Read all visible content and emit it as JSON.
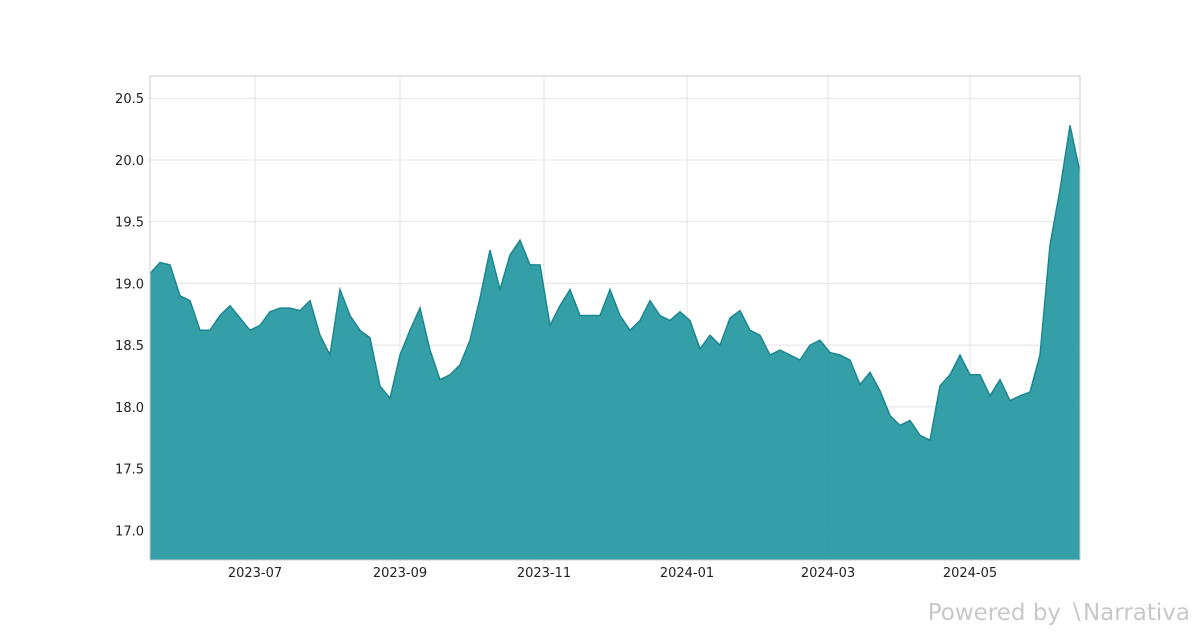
{
  "chart_data": {
    "type": "area",
    "color": "#2a9aa3",
    "grid": true,
    "values": [
      19.08,
      19.17,
      19.15,
      18.9,
      18.86,
      18.62,
      18.62,
      18.74,
      18.82,
      18.72,
      18.62,
      18.66,
      18.77,
      18.8,
      18.8,
      18.78,
      18.86,
      18.58,
      18.42,
      18.95,
      18.74,
      18.62,
      18.56,
      18.17,
      18.07,
      18.42,
      18.62,
      18.8,
      18.46,
      18.22,
      18.26,
      18.34,
      18.54,
      18.88,
      19.27,
      18.95,
      19.23,
      19.35,
      19.15,
      19.15,
      18.66,
      18.82,
      18.95,
      18.74,
      18.74,
      18.74,
      18.95,
      18.74,
      18.62,
      18.7,
      18.86,
      18.74,
      18.7,
      18.77,
      18.7,
      18.47,
      18.58,
      18.5,
      18.72,
      18.78,
      18.62,
      18.58,
      18.42,
      18.46,
      18.42,
      18.38,
      18.5,
      18.54,
      18.44,
      18.42,
      18.38,
      18.18,
      18.28,
      18.13,
      17.93,
      17.85,
      17.89,
      17.77,
      17.73,
      18.17,
      18.26,
      18.42,
      18.26,
      18.26,
      18.09,
      18.22,
      18.05,
      18.09,
      18.12,
      18.42,
      19.31,
      19.76,
      20.28,
      19.9
    ],
    "xlim": [
      0,
      93
    ],
    "xticks": [
      {
        "value": 10.5,
        "label": "2023-07"
      },
      {
        "value": 25,
        "label": "2023-09"
      },
      {
        "value": 39.4,
        "label": "2023-11"
      },
      {
        "value": 53.7,
        "label": "2024-01"
      },
      {
        "value": 67.8,
        "label": "2024-03"
      },
      {
        "value": 82,
        "label": "2024-05"
      }
    ],
    "ylim": [
      16.76,
      20.68
    ],
    "yticks": [
      {
        "value": 17.0,
        "label": "17.0"
      },
      {
        "value": 17.5,
        "label": "17.5"
      },
      {
        "value": 18.0,
        "label": "18.0"
      },
      {
        "value": 18.5,
        "label": "18.5"
      },
      {
        "value": 19.0,
        "label": "19.0"
      },
      {
        "value": 19.5,
        "label": "19.5"
      },
      {
        "value": 20.0,
        "label": "20.0"
      },
      {
        "value": 20.5,
        "label": "20.5"
      }
    ]
  },
  "watermark": "Powered by ∖Narrativa"
}
